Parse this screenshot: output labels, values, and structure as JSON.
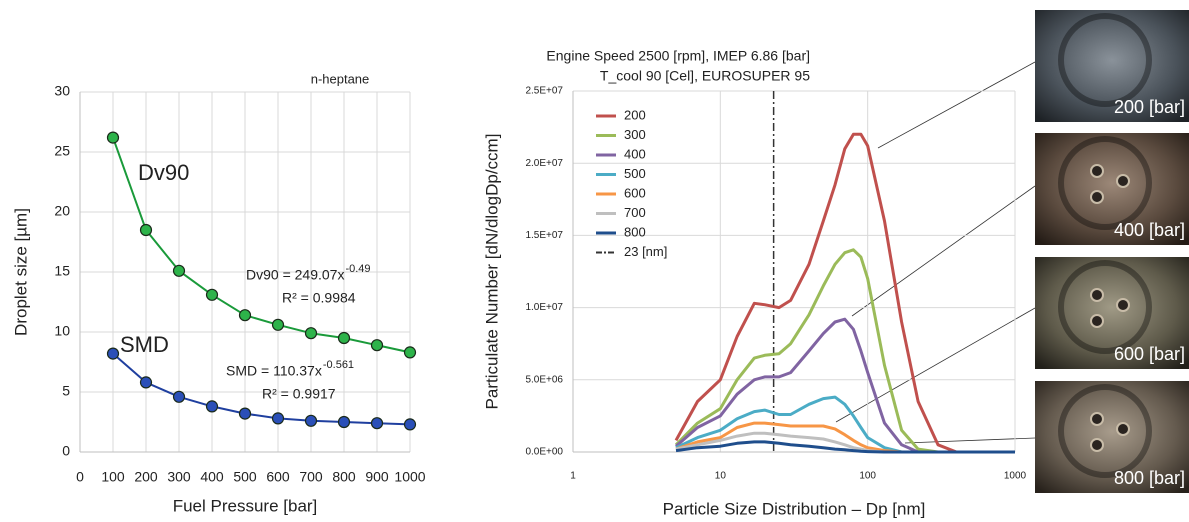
{
  "chart_data": [
    {
      "type": "line",
      "annotation": "n-heptane",
      "xlabel": "Fuel Pressure [bar]",
      "ylabel": "Droplet size [µm]",
      "x": [
        100,
        200,
        300,
        400,
        500,
        600,
        700,
        800,
        900,
        1000
      ],
      "series": [
        {
          "name": "Dv90",
          "color": "#1a9a3a",
          "marker_color": "#2db34a",
          "values": [
            26.2,
            18.5,
            15.1,
            13.1,
            11.4,
            10.6,
            9.9,
            9.5,
            8.9,
            8.3
          ]
        },
        {
          "name": "SMD",
          "color": "#1f3f9f",
          "marker_color": "#2a4fb8",
          "values": [
            8.2,
            5.8,
            4.6,
            3.8,
            3.2,
            2.8,
            2.6,
            2.5,
            2.4,
            2.3
          ]
        }
      ],
      "fit_labels": [
        {
          "equation": "Dv90 = 249.07x",
          "exponent": "-0.49",
          "r2": "R² = 0.9984"
        },
        {
          "equation": "SMD = 110.37x",
          "exponent": "-0.561",
          "r2": "R² = 0.9917"
        }
      ],
      "xlim": [
        0,
        1000
      ],
      "xticks": [
        0,
        100,
        200,
        300,
        400,
        500,
        600,
        700,
        800,
        900,
        1000
      ],
      "ylim": [
        0,
        30
      ],
      "yticks": [
        0,
        5,
        10,
        15,
        20,
        25,
        30
      ],
      "grid": true
    },
    {
      "type": "line",
      "log_x": true,
      "annotations": [
        "Engine Speed 2500 [rpm], IMEP 6.86 [bar]",
        "T_cool 90 [Cel], EUROSUPER 95"
      ],
      "xlabel": "Particle Size Distribution – Dp [nm]",
      "ylabel": "Particulate Number [dN/dlogDp/ccm]",
      "x": [
        5,
        7,
        10,
        13,
        17,
        20,
        25,
        30,
        40,
        50,
        60,
        70,
        80,
        90,
        100,
        130,
        170,
        220,
        300,
        400,
        1000
      ],
      "series": [
        {
          "name": "200",
          "color": "#c0504d",
          "values": [
            800000.0,
            3500000.0,
            5000000.0,
            8000000.0,
            10300000.0,
            10200000.0,
            10000000.0,
            10500000.0,
            13000000.0,
            16000000.0,
            18500000.0,
            21000000.0,
            22000000.0,
            22000000.0,
            21200000.0,
            16000000.0,
            9000000.0,
            3500000.0,
            500000.0,
            0,
            0
          ]
        },
        {
          "name": "300",
          "color": "#9bbb59",
          "values": [
            500000.0,
            2000000.0,
            3000000.0,
            5000000.0,
            6500000.0,
            6700000.0,
            6800000.0,
            7500000.0,
            9500000.0,
            11500000.0,
            13000000.0,
            13800000.0,
            14000000.0,
            13500000.0,
            12000000.0,
            6000000.0,
            1500000.0,
            200000.0,
            0,
            0,
            0
          ]
        },
        {
          "name": "400",
          "color": "#8064a2",
          "values": [
            400000.0,
            1700000.0,
            2500000.0,
            4000000.0,
            5000000.0,
            5200000.0,
            5200000.0,
            5500000.0,
            7000000.0,
            8200000.0,
            9000000.0,
            9200000.0,
            8500000.0,
            7000000.0,
            5500000.0,
            2000000.0,
            500000.0,
            0,
            0,
            0,
            0
          ]
        },
        {
          "name": "500",
          "color": "#4bacc6",
          "values": [
            300000.0,
            1000000.0,
            1500000.0,
            2300000.0,
            2800000.0,
            2900000.0,
            2600000.0,
            2600000.0,
            3300000.0,
            3700000.0,
            3800000.0,
            3300000.0,
            2500000.0,
            1700000.0,
            1000000.0,
            300000.0,
            0,
            0,
            0,
            0,
            0
          ]
        },
        {
          "name": "600",
          "color": "#f79646",
          "values": [
            200000.0,
            700000.0,
            1000000.0,
            1700000.0,
            2000000.0,
            2000000.0,
            1900000.0,
            1800000.0,
            1800000.0,
            1800000.0,
            1600000.0,
            1200000.0,
            800000.0,
            500000.0,
            300000.0,
            100000.0,
            0,
            0,
            0,
            0,
            0
          ]
        },
        {
          "name": "700",
          "color": "#bfbfbf",
          "values": [
            200000.0,
            500000.0,
            800000.0,
            1100000.0,
            1300000.0,
            1300000.0,
            1200000.0,
            1100000.0,
            1000000.0,
            900000.0,
            700000.0,
            500000.0,
            300000.0,
            200000.0,
            100000.0,
            0,
            0,
            0,
            0,
            0,
            0
          ]
        },
        {
          "name": "800",
          "color": "#1f4e8c",
          "values": [
            100000.0,
            300000.0,
            400000.0,
            600000.0,
            700000.0,
            700000.0,
            600000.0,
            500000.0,
            400000.0,
            300000.0,
            200000.0,
            150000.0,
            100000.0,
            50000.0,
            30000.0,
            0,
            0,
            0,
            0,
            0,
            0
          ]
        }
      ],
      "reference_line": {
        "name": "23 [nm]",
        "x": 23,
        "color": "#333333"
      },
      "xlim": [
        1,
        1000
      ],
      "xticks": [
        1,
        10,
        100,
        1000
      ],
      "ylim": [
        0,
        25000000
      ],
      "yticks": [
        {
          "value": 0,
          "label": "0.0E+00"
        },
        {
          "value": 5000000,
          "label": "5.0E+06"
        },
        {
          "value": 10000000,
          "label": "1.0E+07"
        },
        {
          "value": 15000000,
          "label": "1.5E+07"
        },
        {
          "value": 20000000,
          "label": "2.0E+07"
        },
        {
          "value": 25000000,
          "label": "2.5E+07"
        }
      ],
      "grid": true
    }
  ],
  "photos": [
    "200 [bar]",
    "400 [bar]",
    "600 [bar]",
    "800 [bar]"
  ]
}
